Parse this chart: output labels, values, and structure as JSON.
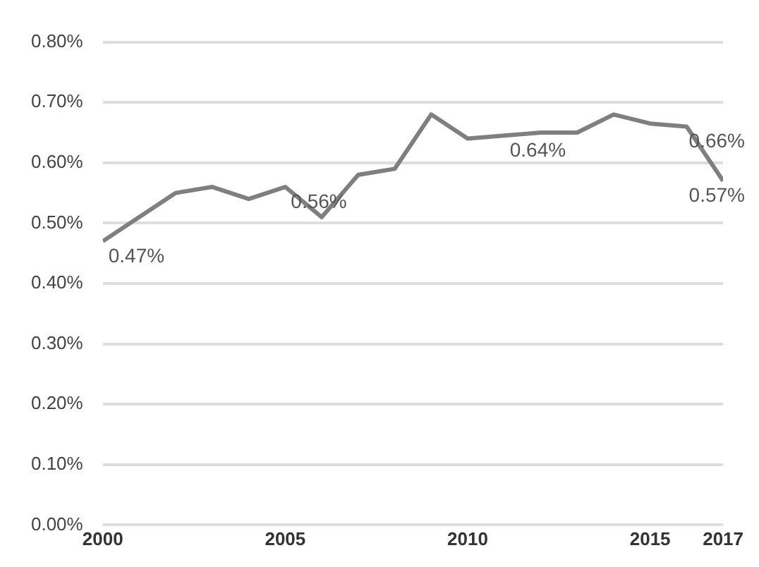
{
  "chart_data": {
    "type": "line",
    "x": [
      2000,
      2001,
      2002,
      2003,
      2004,
      2005,
      2006,
      2007,
      2008,
      2009,
      2010,
      2011,
      2012,
      2013,
      2014,
      2015,
      2016,
      2017
    ],
    "series": [
      {
        "color": "#7f7f7f",
        "values": [
          0.47,
          0.51,
          0.55,
          0.56,
          0.54,
          0.56,
          0.51,
          0.58,
          0.59,
          0.68,
          0.64,
          0.645,
          0.65,
          0.65,
          0.68,
          0.665,
          0.66,
          0.57
        ]
      }
    ],
    "xlim": [
      2000,
      2017
    ],
    "xticks": [
      2000,
      2005,
      2010,
      2015,
      2017
    ],
    "ylim": [
      0,
      0.8
    ],
    "yticks": [
      {
        "value": 0,
        "label": "0.00%"
      },
      {
        "value": 0.1,
        "label": "0.10%"
      },
      {
        "value": 0.2,
        "label": "0.20%"
      },
      {
        "value": 0.3,
        "label": "0.30%"
      },
      {
        "value": 0.4,
        "label": "0.40%"
      },
      {
        "value": 0.5,
        "label": "0.50%"
      },
      {
        "value": 0.6,
        "label": "0.60%"
      },
      {
        "value": 0.7,
        "label": "0.70%"
      },
      {
        "value": 0.8,
        "label": "0.80%"
      }
    ],
    "grid": "y",
    "legend": false,
    "marker": "none",
    "line_style": "solid",
    "annotations": [
      {
        "text": "0.47%",
        "x": 2000,
        "y": 0.47
      },
      {
        "text": "0.56%",
        "x": 2005,
        "y": 0.56
      },
      {
        "text": "0.64%",
        "x": 2011,
        "y": 0.645
      },
      {
        "text": "0.66%",
        "x": 2016,
        "y": 0.66
      },
      {
        "text": "0.57%",
        "x": 2017,
        "y": 0.57
      }
    ]
  }
}
